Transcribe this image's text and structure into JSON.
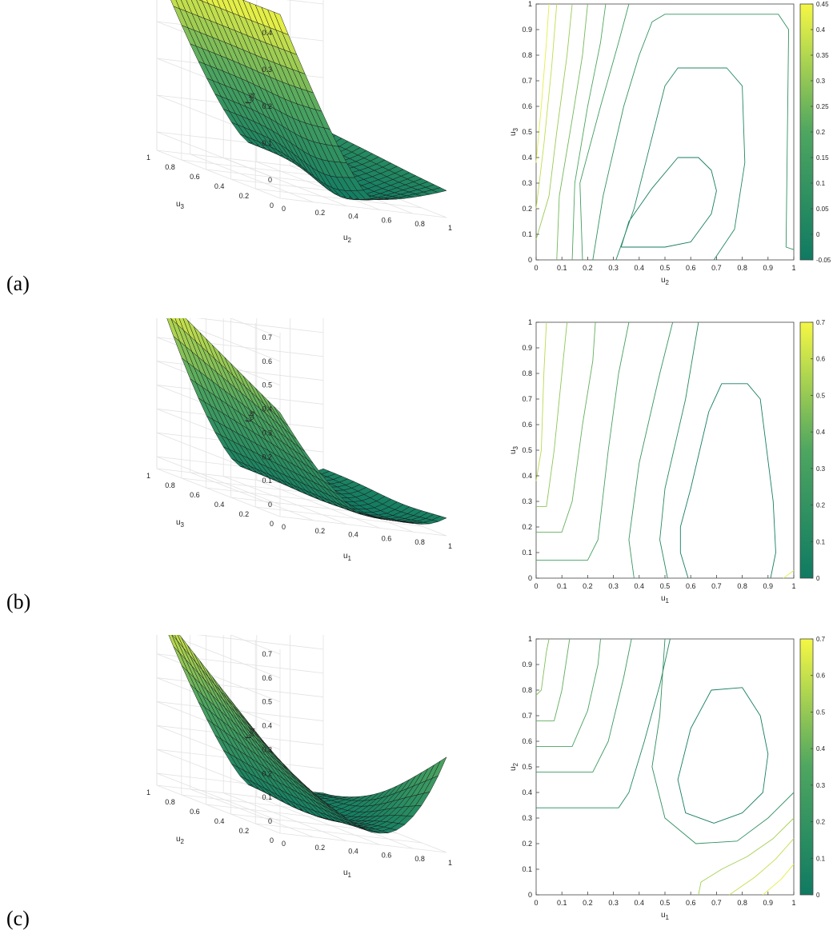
{
  "palette": {
    "low": "#0f7a62",
    "mid": "#4ea660",
    "high": "#f5f744",
    "edge": "#1a1a1a",
    "grid": "#e2e2e2",
    "axis": "#444444"
  },
  "panels": [
    {
      "label": "(a)",
      "surface": {
        "zlabel_main": "f",
        "zlabel_sub": "obj",
        "xlabel_main": "u",
        "xlabel_sub": "2",
        "ylabel_main": "u",
        "ylabel_sub": "3",
        "zticks": [
          "0",
          "0.1",
          "0.2",
          "0.3",
          "0.4"
        ],
        "ztick_values": [
          0,
          0.1,
          0.2,
          0.3,
          0.4
        ],
        "zlim": [
          -0.05,
          0.45
        ],
        "xticks": [
          "0",
          "0.2",
          "0.4",
          "0.6",
          "0.8",
          "1"
        ],
        "yticks": [
          "0",
          "0.2",
          "0.4",
          "0.6",
          "0.8",
          "1"
        ],
        "fmin_at": [
          0.55,
          0.25
        ]
      },
      "contour": {
        "xlabel_main": "u",
        "xlabel_sub": "2",
        "ylabel_main": "u",
        "ylabel_sub": "3",
        "xticks": [
          "0",
          "0.1",
          "0.2",
          "0.3",
          "0.4",
          "0.5",
          "0.6",
          "0.7",
          "0.8",
          "0.9",
          "1"
        ],
        "yticks": [
          "0",
          "0.1",
          "0.2",
          "0.3",
          "0.4",
          "0.5",
          "0.6",
          "0.7",
          "0.8",
          "0.9",
          "1"
        ]
      },
      "colorbar": {
        "ticks": [
          "-0.05",
          "0",
          "0.05",
          "0.1",
          "0.15",
          "0.2",
          "0.25",
          "0.3",
          "0.35",
          "0.4",
          "0.45"
        ],
        "values": [
          -0.05,
          0,
          0.05,
          0.1,
          0.15,
          0.2,
          0.25,
          0.3,
          0.35,
          0.4,
          0.45
        ],
        "range": [
          -0.05,
          0.45
        ]
      }
    },
    {
      "label": "(b)",
      "surface": {
        "zlabel_main": "f",
        "zlabel_sub": "obj",
        "xlabel_main": "u",
        "xlabel_sub": "1",
        "ylabel_main": "u",
        "ylabel_sub": "3",
        "zticks": [
          "0",
          "0.1",
          "0.2",
          "0.3",
          "0.4",
          "0.5",
          "0.6",
          "0.7"
        ],
        "ztick_values": [
          0,
          0.1,
          0.2,
          0.3,
          0.4,
          0.5,
          0.6,
          0.7
        ],
        "zlim": [
          -0.05,
          0.72
        ],
        "xticks": [
          "0",
          "0.2",
          "0.4",
          "0.6",
          "0.8",
          "1"
        ],
        "yticks": [
          "0",
          "0.2",
          "0.4",
          "0.6",
          "0.8",
          "1"
        ],
        "fmin_at": [
          0.78,
          0.35
        ]
      },
      "contour": {
        "xlabel_main": "u",
        "xlabel_sub": "1",
        "ylabel_main": "u",
        "ylabel_sub": "3",
        "xticks": [
          "0",
          "0.1",
          "0.2",
          "0.3",
          "0.4",
          "0.5",
          "0.6",
          "0.7",
          "0.8",
          "0.9",
          "1"
        ],
        "yticks": [
          "0",
          "0.1",
          "0.2",
          "0.3",
          "0.4",
          "0.5",
          "0.6",
          "0.7",
          "0.8",
          "0.9",
          "1"
        ]
      },
      "colorbar": {
        "ticks": [
          "0",
          "0.1",
          "0.2",
          "0.3",
          "0.4",
          "0.5",
          "0.6",
          "0.7"
        ],
        "values": [
          0,
          0.1,
          0.2,
          0.3,
          0.4,
          0.5,
          0.6,
          0.7
        ],
        "range": [
          0,
          0.7
        ]
      }
    },
    {
      "label": "(c)",
      "surface": {
        "zlabel_main": "f",
        "zlabel_sub": "obj",
        "xlabel_main": "u",
        "xlabel_sub": "1",
        "ylabel_main": "u",
        "ylabel_sub": "2",
        "zticks": [
          "0",
          "0.1",
          "0.2",
          "0.3",
          "0.4",
          "0.5",
          "0.6",
          "0.7"
        ],
        "ztick_values": [
          0,
          0.1,
          0.2,
          0.3,
          0.4,
          0.5,
          0.6,
          0.7
        ],
        "zlim": [
          -0.05,
          0.72
        ],
        "xticks": [
          "0",
          "0.2",
          "0.4",
          "0.6",
          "0.8",
          "1"
        ],
        "yticks": [
          "0",
          "0.2",
          "0.4",
          "0.6",
          "0.8",
          "1"
        ],
        "fmin_at": [
          0.75,
          0.55
        ]
      },
      "contour": {
        "xlabel_main": "u",
        "xlabel_sub": "1",
        "ylabel_main": "u",
        "ylabel_sub": "2",
        "xticks": [
          "0",
          "0.1",
          "0.2",
          "0.3",
          "0.4",
          "0.5",
          "0.6",
          "0.7",
          "0.8",
          "0.9",
          "1"
        ],
        "yticks": [
          "0",
          "0.1",
          "0.2",
          "0.3",
          "0.4",
          "0.5",
          "0.6",
          "0.7",
          "0.8",
          "0.9",
          "1"
        ]
      },
      "colorbar": {
        "ticks": [
          "0",
          "0.1",
          "0.2",
          "0.3",
          "0.4",
          "0.5",
          "0.6",
          "0.7"
        ],
        "values": [
          0,
          0.1,
          0.2,
          0.3,
          0.4,
          0.5,
          0.6,
          0.7
        ],
        "range": [
          0,
          0.7
        ]
      }
    }
  ],
  "chart_data": [
    {
      "type": "surface",
      "panel": "(a) left",
      "xlabel": "u2",
      "ylabel": "u3",
      "zlabel": "fobj",
      "xlim": [
        0,
        1
      ],
      "ylim": [
        0,
        1
      ],
      "zlim": [
        -0.05,
        0.45
      ],
      "grid": true,
      "min_at": [
        0.55,
        0.25
      ]
    },
    {
      "type": "contour",
      "panel": "(a) right",
      "xlabel": "u2",
      "ylabel": "u3",
      "xlim": [
        0,
        1
      ],
      "ylim": [
        0,
        1
      ],
      "colorbar_range": [
        -0.05,
        0.45
      ],
      "colorbar_ticks": [
        -0.05,
        0,
        0.05,
        0.1,
        0.15,
        0.2,
        0.25,
        0.3,
        0.35,
        0.4,
        0.45
      ],
      "contours": [
        [
          [
            0.33,
            0.05
          ],
          [
            0.36,
            0.15
          ],
          [
            0.45,
            0.28
          ],
          [
            0.55,
            0.4
          ],
          [
            0.63,
            0.4
          ],
          [
            0.68,
            0.35
          ],
          [
            0.7,
            0.27
          ],
          [
            0.68,
            0.18
          ],
          [
            0.6,
            0.07
          ],
          [
            0.5,
            0.05
          ],
          [
            0.38,
            0.05
          ],
          [
            0.33,
            0.05
          ]
        ],
        [
          [
            0.31,
            0.0
          ],
          [
            0.38,
            0.2
          ],
          [
            0.46,
            0.52
          ],
          [
            0.5,
            0.68
          ],
          [
            0.55,
            0.75
          ],
          [
            0.74,
            0.75
          ],
          [
            0.8,
            0.68
          ],
          [
            0.81,
            0.38
          ],
          [
            0.77,
            0.12
          ],
          [
            0.69,
            0.0
          ]
        ],
        [
          [
            0.22,
            0.0
          ],
          [
            0.26,
            0.25
          ],
          [
            0.34,
            0.6
          ],
          [
            0.4,
            0.8
          ],
          [
            0.45,
            0.93
          ],
          [
            0.5,
            0.96
          ],
          [
            0.94,
            0.96
          ],
          [
            0.98,
            0.9
          ],
          [
            0.97,
            0.05
          ],
          [
            1.0,
            0.04
          ]
        ],
        [
          [
            0.18,
            0.0
          ],
          [
            0.17,
            0.3
          ],
          [
            0.25,
            0.6
          ],
          [
            0.32,
            0.85
          ],
          [
            0.36,
            1.0
          ]
        ],
        [
          [
            0.14,
            0.0
          ],
          [
            0.15,
            0.3
          ],
          [
            0.2,
            0.6
          ],
          [
            0.25,
            0.85
          ],
          [
            0.27,
            1.0
          ]
        ],
        [
          [
            0.08,
            0.0
          ],
          [
            0.09,
            0.25
          ],
          [
            0.14,
            0.55
          ],
          [
            0.18,
            0.8
          ],
          [
            0.2,
            1.0
          ]
        ],
        [
          [
            0.0,
            0.08
          ],
          [
            0.05,
            0.25
          ],
          [
            0.08,
            0.5
          ],
          [
            0.12,
            0.8
          ],
          [
            0.14,
            1.0
          ]
        ],
        [
          [
            0.0,
            0.2
          ],
          [
            0.03,
            0.45
          ],
          [
            0.06,
            0.75
          ],
          [
            0.08,
            1.0
          ]
        ],
        [
          [
            0.0,
            0.38
          ],
          [
            0.02,
            0.6
          ],
          [
            0.04,
            0.85
          ],
          [
            0.05,
            1.0
          ]
        ]
      ]
    },
    {
      "type": "surface",
      "panel": "(b) left",
      "xlabel": "u1",
      "ylabel": "u3",
      "zlabel": "fobj",
      "xlim": [
        0,
        1
      ],
      "ylim": [
        0,
        1
      ],
      "zlim": [
        -0.05,
        0.72
      ],
      "grid": true,
      "min_at": [
        0.78,
        0.35
      ]
    },
    {
      "type": "contour",
      "panel": "(b) right",
      "xlabel": "u1",
      "ylabel": "u3",
      "xlim": [
        0,
        1
      ],
      "ylim": [
        0,
        1
      ],
      "colorbar_range": [
        0,
        0.7
      ],
      "colorbar_ticks": [
        0,
        0.1,
        0.2,
        0.3,
        0.4,
        0.5,
        0.6,
        0.7
      ],
      "contours": [
        [
          [
            0.59,
            0.0
          ],
          [
            0.56,
            0.1
          ],
          [
            0.56,
            0.2
          ],
          [
            0.6,
            0.35
          ],
          [
            0.67,
            0.65
          ],
          [
            0.72,
            0.76
          ],
          [
            0.82,
            0.76
          ],
          [
            0.87,
            0.7
          ],
          [
            0.92,
            0.3
          ],
          [
            0.93,
            0.1
          ],
          [
            0.91,
            0.0
          ]
        ],
        [
          [
            0.51,
            0.0
          ],
          [
            0.48,
            0.15
          ],
          [
            0.5,
            0.35
          ],
          [
            0.58,
            0.7
          ],
          [
            0.63,
            1.0
          ]
        ],
        [
          [
            0.38,
            0.0
          ],
          [
            0.36,
            0.15
          ],
          [
            0.4,
            0.45
          ],
          [
            0.48,
            0.8
          ],
          [
            0.53,
            1.0
          ]
        ],
        [
          [
            0.0,
            0.07
          ],
          [
            0.2,
            0.07
          ],
          [
            0.24,
            0.15
          ],
          [
            0.28,
            0.5
          ],
          [
            0.32,
            0.8
          ],
          [
            0.36,
            1.0
          ]
        ],
        [
          [
            0.0,
            0.18
          ],
          [
            0.1,
            0.18
          ],
          [
            0.14,
            0.3
          ],
          [
            0.18,
            0.6
          ],
          [
            0.22,
            0.85
          ],
          [
            0.23,
            1.0
          ]
        ],
        [
          [
            0.0,
            0.28
          ],
          [
            0.04,
            0.28
          ],
          [
            0.07,
            0.5
          ],
          [
            0.1,
            0.8
          ],
          [
            0.12,
            1.0
          ]
        ],
        [
          [
            0.0,
            0.38
          ],
          [
            0.02,
            0.5
          ],
          [
            0.03,
            0.8
          ],
          [
            0.04,
            1.0
          ]
        ],
        [
          [
            0.96,
            0.0
          ],
          [
            1.0,
            0.03
          ]
        ]
      ]
    },
    {
      "type": "surface",
      "panel": "(c) left",
      "xlabel": "u1",
      "ylabel": "u2",
      "zlabel": "fobj",
      "xlim": [
        0,
        1
      ],
      "ylim": [
        0,
        1
      ],
      "zlim": [
        -0.05,
        0.72
      ],
      "grid": true,
      "min_at": [
        0.75,
        0.55
      ]
    },
    {
      "type": "contour",
      "panel": "(c) right",
      "xlabel": "u1",
      "ylabel": "u2",
      "xlim": [
        0,
        1
      ],
      "ylim": [
        0,
        1
      ],
      "colorbar_range": [
        0,
        0.7
      ],
      "colorbar_ticks": [
        0,
        0.1,
        0.2,
        0.3,
        0.4,
        0.5,
        0.6,
        0.7
      ],
      "contours": [
        [
          [
            0.69,
            0.28
          ],
          [
            0.58,
            0.32
          ],
          [
            0.55,
            0.45
          ],
          [
            0.6,
            0.65
          ],
          [
            0.68,
            0.8
          ],
          [
            0.8,
            0.81
          ],
          [
            0.87,
            0.7
          ],
          [
            0.9,
            0.55
          ],
          [
            0.88,
            0.4
          ],
          [
            0.8,
            0.32
          ],
          [
            0.69,
            0.28
          ]
        ],
        [
          [
            0.0,
            0.34
          ],
          [
            0.32,
            0.34
          ],
          [
            0.36,
            0.4
          ],
          [
            0.42,
            0.6
          ],
          [
            0.48,
            0.82
          ],
          [
            0.52,
            1.0
          ]
        ],
        [
          [
            0.5,
            1.0
          ],
          [
            0.48,
            0.7
          ],
          [
            0.45,
            0.5
          ],
          [
            0.5,
            0.3
          ],
          [
            0.62,
            0.2
          ],
          [
            0.78,
            0.21
          ],
          [
            0.9,
            0.3
          ],
          [
            1.0,
            0.4
          ]
        ],
        [
          [
            0.0,
            0.48
          ],
          [
            0.22,
            0.48
          ],
          [
            0.28,
            0.6
          ],
          [
            0.34,
            0.85
          ],
          [
            0.37,
            1.0
          ]
        ],
        [
          [
            0.0,
            0.58
          ],
          [
            0.14,
            0.58
          ],
          [
            0.2,
            0.72
          ],
          [
            0.24,
            0.9
          ],
          [
            0.25,
            1.0
          ]
        ],
        [
          [
            0.0,
            0.68
          ],
          [
            0.07,
            0.68
          ],
          [
            0.1,
            0.8
          ],
          [
            0.13,
            1.0
          ]
        ],
        [
          [
            0.0,
            0.78
          ],
          [
            0.02,
            0.8
          ],
          [
            0.04,
            0.95
          ],
          [
            0.05,
            1.0
          ]
        ],
        [
          [
            0.63,
            0.0
          ],
          [
            0.64,
            0.05
          ],
          [
            0.72,
            0.1
          ],
          [
            0.82,
            0.15
          ],
          [
            0.92,
            0.22
          ],
          [
            1.0,
            0.3
          ]
        ],
        [
          [
            0.75,
            0.0
          ],
          [
            0.85,
            0.07
          ],
          [
            0.93,
            0.14
          ],
          [
            1.0,
            0.22
          ]
        ],
        [
          [
            0.88,
            0.0
          ],
          [
            0.95,
            0.06
          ],
          [
            1.0,
            0.12
          ]
        ]
      ]
    }
  ]
}
